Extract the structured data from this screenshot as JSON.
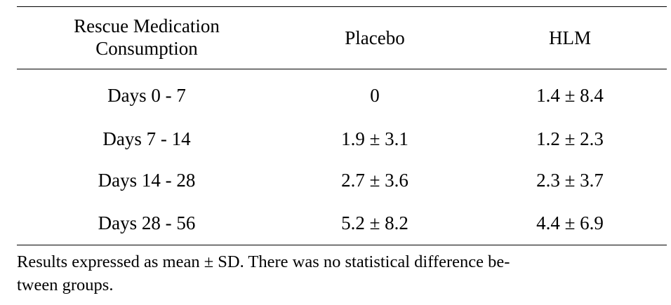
{
  "table": {
    "headers": [
      "Rescue Medication Consumption",
      "Placebo",
      "HLM"
    ],
    "header_first_line1": "Rescue Medication",
    "header_first_line2": "Consumption",
    "rows": [
      {
        "label": "Days 0 - 7",
        "placebo": "0",
        "hlm": "1.4 ± 8.4"
      },
      {
        "label": "Days 7 - 14",
        "placebo": "1.9 ± 3.1",
        "hlm": "1.2 ± 2.3"
      },
      {
        "label": "Days 14 - 28",
        "placebo": "2.7 ± 3.6",
        "hlm": "2.3 ± 3.7"
      },
      {
        "label": "Days 28 - 56",
        "placebo": "5.2 ± 8.2",
        "hlm": "4.4 ± 6.9"
      }
    ]
  },
  "footnote": {
    "line1": "Results expressed as mean ± SD. There was no statistical difference be-",
    "line2": "tween groups."
  }
}
